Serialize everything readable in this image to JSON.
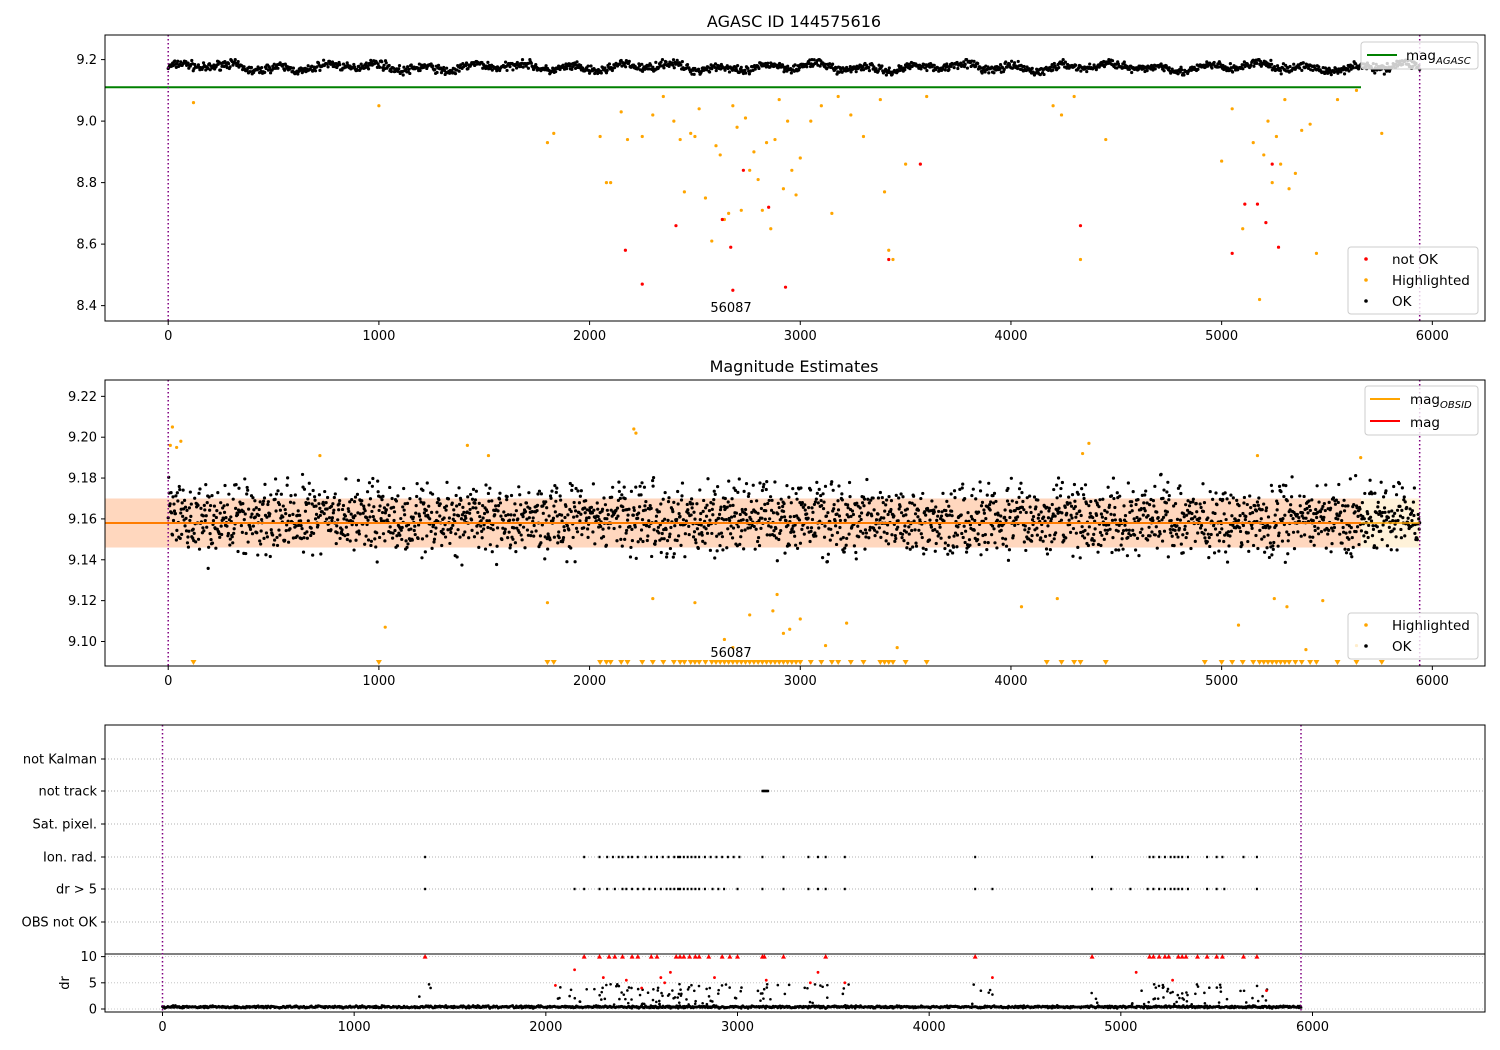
{
  "chart_data": [
    {
      "type": "scatter",
      "title": "AGASC ID 144575616",
      "xlim": [
        -300,
        6250
      ],
      "ylim": [
        8.35,
        9.28
      ],
      "xticks": [
        0,
        1000,
        2000,
        3000,
        4000,
        5000,
        6000
      ],
      "yticks": [
        8.4,
        8.6,
        8.8,
        9.0,
        9.2
      ],
      "annotation": "56087",
      "vlines": [
        0,
        5940
      ],
      "legend_lines": [
        {
          "name": "mag_AGASC",
          "color": "#008000",
          "y": 9.11
        }
      ],
      "legend_points": [
        {
          "name": "not OK",
          "color": "#ff0000"
        },
        {
          "name": "Highlighted",
          "color": "#ffa500"
        },
        {
          "name": "OK",
          "color": "#000000"
        }
      ],
      "series": [
        {
          "name": "OK",
          "color": "#000000",
          "band": [
            9.15,
            9.2
          ],
          "x_range": [
            0,
            5940
          ]
        },
        {
          "name": "Highlighted",
          "color": "#ffa500",
          "x": [
            120,
            1000,
            1800,
            1830,
            2050,
            2080,
            2100,
            2150,
            2180,
            2250,
            2300,
            2350,
            2400,
            2430,
            2450,
            2480,
            2500,
            2520,
            2550,
            2580,
            2600,
            2620,
            2640,
            2660,
            2680,
            2700,
            2720,
            2740,
            2760,
            2780,
            2800,
            2820,
            2840,
            2860,
            2880,
            2900,
            2920,
            2940,
            2960,
            2980,
            3000,
            3050,
            3100,
            3150,
            3180,
            3240,
            3300,
            3380,
            3400,
            3420,
            3440,
            3500,
            3600,
            4200,
            4240,
            4300,
            4330,
            4450,
            5000,
            5050,
            5100,
            5150,
            5180,
            5200,
            5220,
            5240,
            5260,
            5280,
            5300,
            5320,
            5350,
            5380,
            5420,
            5450,
            5550,
            5640,
            5760
          ],
          "y": [
            9.06,
            9.05,
            8.93,
            8.96,
            8.95,
            8.8,
            8.8,
            9.03,
            8.94,
            8.95,
            9.02,
            9.08,
            9.0,
            8.94,
            8.77,
            8.96,
            8.95,
            9.04,
            8.75,
            8.61,
            8.92,
            8.89,
            8.68,
            8.7,
            9.05,
            8.98,
            8.71,
            9.01,
            8.84,
            8.9,
            8.81,
            8.71,
            8.93,
            8.65,
            8.94,
            9.07,
            8.78,
            9.0,
            8.84,
            8.76,
            8.88,
            9.0,
            9.05,
            8.7,
            9.08,
            9.02,
            8.95,
            9.07,
            8.77,
            8.58,
            8.55,
            8.86,
            9.08,
            9.05,
            9.02,
            9.08,
            8.55,
            8.94,
            8.87,
            9.04,
            8.65,
            8.93,
            8.42,
            8.89,
            9.0,
            8.8,
            8.95,
            8.86,
            9.07,
            8.78,
            8.83,
            8.97,
            8.99,
            8.57,
            9.07,
            9.1,
            8.96
          ]
        },
        {
          "name": "not OK",
          "color": "#ff0000",
          "x": [
            2170,
            2250,
            2410,
            2630,
            2670,
            2680,
            2730,
            2850,
            2930,
            3420,
            3570,
            4330,
            5050,
            5110,
            5170,
            5210,
            5240,
            5270
          ],
          "y": [
            8.58,
            8.47,
            8.66,
            8.68,
            8.59,
            8.45,
            8.84,
            8.72,
            8.46,
            8.55,
            8.86,
            8.66,
            8.57,
            8.73,
            8.73,
            8.67,
            8.86,
            8.59
          ]
        }
      ]
    },
    {
      "type": "scatter",
      "title": "Magnitude Estimates",
      "xlim": [
        -300,
        6250
      ],
      "ylim": [
        9.088,
        9.228
      ],
      "xticks": [
        0,
        1000,
        2000,
        3000,
        4000,
        5000,
        6000
      ],
      "yticks": [
        9.1,
        9.12,
        9.14,
        9.16,
        9.18,
        9.2,
        9.22
      ],
      "ytick_labels": [
        "9.10",
        "9.12",
        "9.14",
        "9.16",
        "9.18",
        "9.20",
        "9.22"
      ],
      "annotation": "56087",
      "vlines": [
        0,
        5940
      ],
      "mag": 9.158,
      "mag_band": [
        9.146,
        9.17
      ],
      "legend_lines": [
        {
          "name": "mag_OBSID",
          "color": "#ffa500"
        },
        {
          "name": "mag",
          "color": "#ff0000"
        }
      ],
      "legend_points": [
        {
          "name": "Highlighted",
          "color": "#ffa500"
        },
        {
          "name": "OK",
          "color": "#000000"
        }
      ],
      "series": [
        {
          "name": "OK",
          "color": "#000000",
          "band": [
            9.13,
            9.19
          ],
          "x_range": [
            0,
            5940
          ]
        },
        {
          "name": "Highlighted",
          "color": "#ffa500",
          "x": [
            10,
            20,
            40,
            60,
            720,
            1420,
            1520,
            1800,
            1030,
            2210,
            2220,
            2300,
            2500,
            2640,
            2680,
            2760,
            2870,
            2890,
            2920,
            2950,
            3000,
            3120,
            3220,
            3460,
            4050,
            4220,
            4340,
            4370,
            5080,
            5170,
            5250,
            5310,
            5400,
            5480,
            5640,
            5660
          ],
          "y": [
            9.196,
            9.205,
            9.195,
            9.198,
            9.191,
            9.196,
            9.191,
            9.119,
            9.107,
            9.204,
            9.202,
            9.121,
            9.119,
            9.101,
            9.097,
            9.113,
            9.115,
            9.123,
            9.104,
            9.106,
            9.111,
            9.098,
            9.109,
            9.097,
            9.117,
            9.121,
            9.192,
            9.197,
            9.108,
            9.191,
            9.121,
            9.117,
            9.096,
            9.12,
            9.098,
            9.19
          ]
        }
      ],
      "clipped_low_x": [
        120,
        1000,
        1800,
        1830,
        2050,
        2080,
        2100,
        2150,
        2180,
        2250,
        2300,
        2350,
        2400,
        2430,
        2450,
        2480,
        2500,
        2520,
        2550,
        2580,
        2600,
        2620,
        2640,
        2660,
        2680,
        2700,
        2720,
        2740,
        2760,
        2780,
        2800,
        2820,
        2840,
        2860,
        2880,
        2900,
        2920,
        2940,
        2960,
        2980,
        3000,
        3050,
        3100,
        3150,
        3180,
        3240,
        3300,
        3380,
        3400,
        3420,
        3440,
        3500,
        3600,
        4170,
        4240,
        4300,
        4330,
        4450,
        4920,
        5000,
        5050,
        5100,
        5150,
        5180,
        5200,
        5220,
        5240,
        5260,
        5280,
        5300,
        5320,
        5350,
        5380,
        5420,
        5450,
        5550,
        5640,
        5760
      ]
    },
    {
      "type": "scatter",
      "xlim": [
        -300,
        6900
      ],
      "xticks": [
        0,
        1000,
        2000,
        3000,
        4000,
        5000,
        6000
      ],
      "vlines": [
        0,
        5940
      ],
      "flag_rows": [
        "not Kalman",
        "not track",
        "Sat. pixel.",
        "Ion. rad.",
        "dr > 5",
        "OBS not OK"
      ],
      "flag_points": {
        "not Kalman": [],
        "not track": [
          3130,
          3135,
          3140,
          3145,
          3150,
          3155,
          3160
        ],
        "Sat. pixel.": [],
        "Ion. rad.": [
          1370,
          2200,
          2280,
          2320,
          2350,
          2380,
          2400,
          2430,
          2450,
          2480,
          2520,
          2550,
          2580,
          2610,
          2640,
          2670,
          2690,
          2700,
          2720,
          2740,
          2760,
          2780,
          2800,
          2830,
          2860,
          2890,
          2920,
          2950,
          2980,
          3010,
          3130,
          3240,
          3370,
          3420,
          3460,
          3560,
          4240,
          4850,
          5150,
          5170,
          5200,
          5230,
          5260,
          5280,
          5300,
          5320,
          5350,
          5450,
          5500,
          5530,
          5640,
          5710
        ],
        "dr > 5": [
          1370,
          2150,
          2200,
          2280,
          2320,
          2360,
          2400,
          2420,
          2450,
          2480,
          2510,
          2540,
          2570,
          2600,
          2630,
          2650,
          2670,
          2690,
          2700,
          2720,
          2740,
          2760,
          2780,
          2800,
          2830,
          2870,
          2900,
          2930,
          3000,
          3130,
          3240,
          3370,
          3420,
          3460,
          3560,
          4240,
          4330,
          4850,
          4950,
          5050,
          5140,
          5170,
          5200,
          5230,
          5260,
          5280,
          5300,
          5320,
          5350,
          5450,
          5500,
          5540,
          5710
        ],
        "OBS not OK": []
      },
      "dr_ylabel": "dr",
      "dr_yticks": [
        0,
        5,
        10
      ],
      "dr_ylim": [
        0,
        10.5
      ],
      "dr_clip": 10,
      "dr_series": [
        {
          "name": "OK",
          "color": "#000000",
          "band": [
            0,
            0.8
          ],
          "x_range": [
            0,
            5940
          ]
        },
        {
          "name": "not OK",
          "color": "#ff0000",
          "x": [
            1370,
            2050,
            2150,
            2200,
            2280,
            2300,
            2330,
            2360,
            2400,
            2420,
            2450,
            2480,
            2500,
            2550,
            2580,
            2600,
            2620,
            2650,
            2680,
            2700,
            2720,
            2750,
            2780,
            2800,
            2850,
            2880,
            2920,
            2960,
            3000,
            3130,
            3140,
            3150,
            3240,
            3380,
            3420,
            3460,
            3560,
            4240,
            4330,
            4850,
            5080,
            5150,
            5170,
            5200,
            5230,
            5250,
            5270,
            5300,
            5320,
            5340,
            5400,
            5450,
            5500,
            5530,
            5640,
            5710,
            5760
          ],
          "y": [
            10,
            4.5,
            7.5,
            10,
            10,
            6,
            10,
            10,
            10,
            5.5,
            10,
            10,
            4,
            10,
            10,
            6,
            5,
            7,
            10,
            10,
            10,
            10,
            10,
            10,
            10,
            6,
            10,
            10,
            10,
            10,
            10,
            5.5,
            10,
            5,
            7,
            10,
            5,
            10,
            6,
            10,
            7,
            10,
            10,
            10,
            10,
            10,
            5.5,
            10,
            10,
            10,
            10,
            10,
            10,
            10,
            10,
            10,
            3.5
          ]
        }
      ]
    }
  ]
}
